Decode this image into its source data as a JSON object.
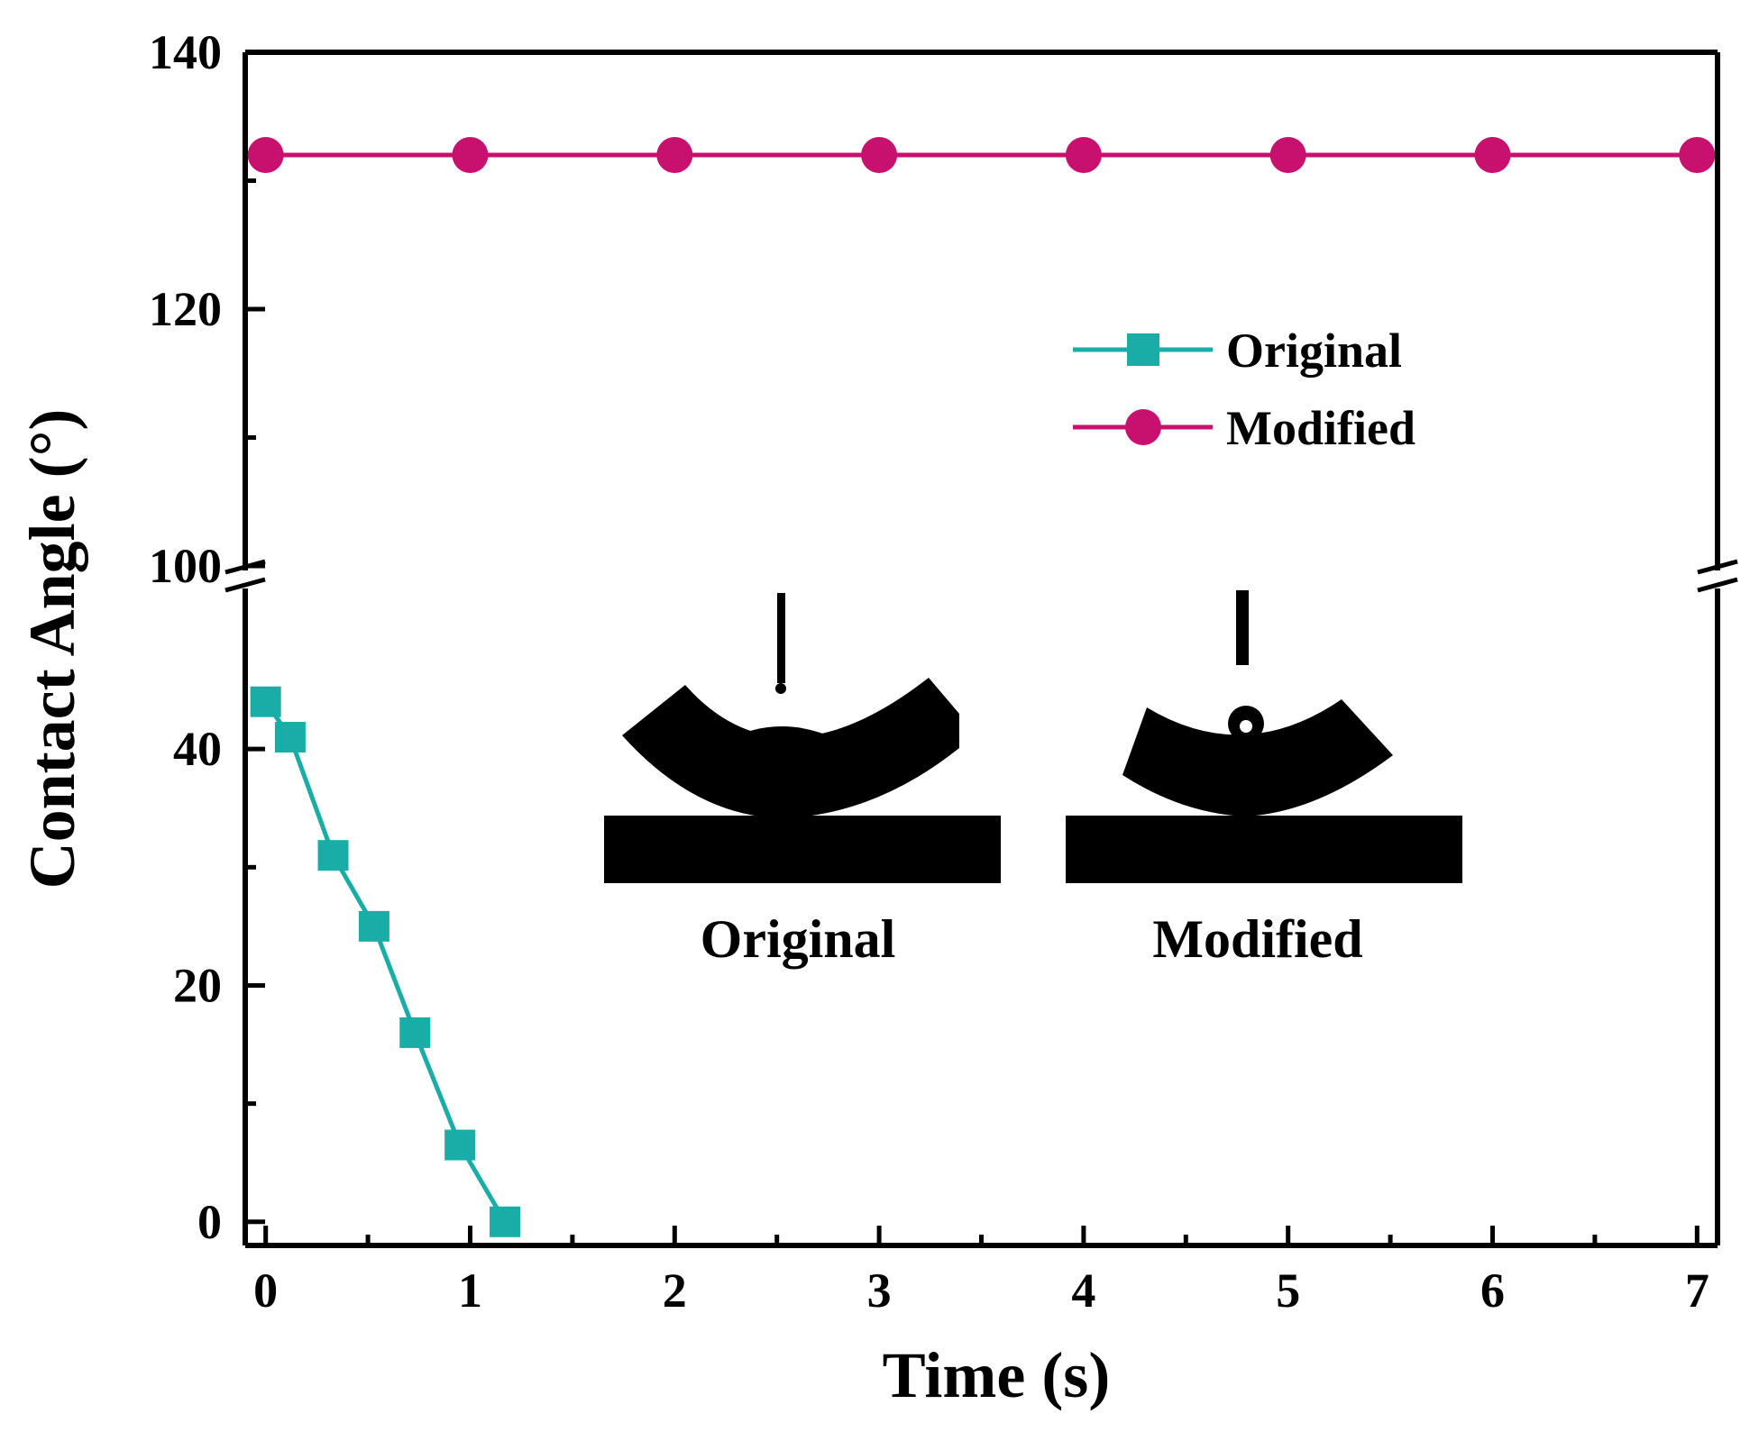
{
  "chart_data": {
    "type": "line",
    "xlabel": "Time (s)",
    "ylabel": "Contact Angle (°)",
    "xlim": [
      -0.1,
      7.1
    ],
    "x_ticks": [
      "0",
      "1",
      "2",
      "3",
      "4",
      "5",
      "6",
      "7"
    ],
    "y_axis_break": {
      "lower_range": [
        -2,
        50
      ],
      "upper_range": [
        100,
        140
      ]
    },
    "y_ticks_lower": [
      "0",
      "20",
      "40"
    ],
    "y_ticks_upper": [
      "100",
      "120",
      "140"
    ],
    "grid": false,
    "legend_position": "upper-right",
    "series": [
      {
        "name": "Original",
        "marker": "square",
        "color": "#1aada8",
        "x": [
          0,
          0.12,
          0.33,
          0.53,
          0.73,
          0.95,
          1.17
        ],
        "y": [
          44,
          41,
          31,
          25,
          16,
          6.5,
          0
        ]
      },
      {
        "name": "Modified",
        "marker": "circle",
        "color": "#c8106e",
        "x": [
          0,
          1,
          2,
          3,
          4,
          5,
          6,
          7
        ],
        "y": [
          132,
          132,
          132,
          132,
          132,
          132,
          132,
          132
        ]
      }
    ],
    "inset": {
      "labels": [
        "Original",
        "Modified"
      ]
    }
  }
}
